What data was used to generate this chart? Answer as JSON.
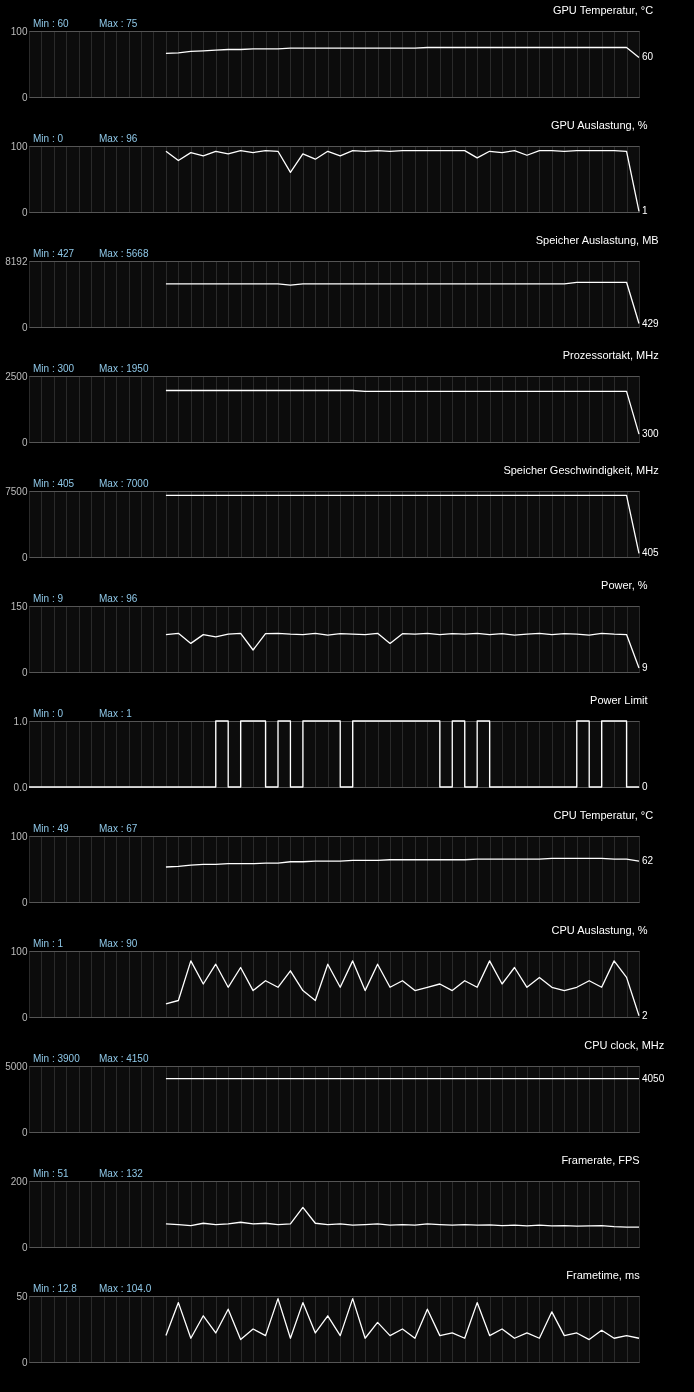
{
  "chart_data": [
    {
      "type": "line",
      "title": "GPU Temperatur, °C",
      "categories": [
        null,
        null,
        null,
        null,
        null,
        null,
        null,
        null,
        null,
        null,
        null,
        null,
        null,
        null,
        null,
        null,
        null,
        null,
        null,
        null,
        null,
        null,
        null,
        null,
        null,
        null,
        null,
        null,
        null,
        null,
        null,
        null,
        null,
        null,
        null,
        null,
        null,
        null,
        null,
        null,
        null,
        null,
        null,
        null,
        null,
        null,
        null,
        null,
        null,
        null
      ],
      "series": [
        {
          "color": "#ffffff",
          "values": [
            null,
            null,
            null,
            null,
            null,
            null,
            null,
            null,
            null,
            null,
            null,
            66,
            67,
            69,
            70,
            71,
            72,
            72,
            73,
            73,
            73,
            74,
            74,
            74,
            74,
            74,
            74,
            74,
            74,
            74,
            74,
            74,
            75,
            75,
            75,
            75,
            75,
            75,
            75,
            75,
            75,
            75,
            75,
            75,
            75,
            75,
            75,
            75,
            75,
            60
          ]
        }
      ],
      "ylim": [
        0,
        100
      ],
      "yticks": [
        0,
        100
      ],
      "grid": true,
      "tick_labels": "y",
      "annotations": [
        "Min : 60",
        "Max : 75",
        "60"
      ]
    },
    {
      "type": "line",
      "title": "GPU Auslastung, %",
      "categories": [
        null,
        null,
        null,
        null,
        null,
        null,
        null,
        null,
        null,
        null,
        null,
        null,
        null,
        null,
        null,
        null,
        null,
        null,
        null,
        null,
        null,
        null,
        null,
        null,
        null,
        null,
        null,
        null,
        null,
        null,
        null,
        null,
        null,
        null,
        null,
        null,
        null,
        null,
        null,
        null,
        null,
        null,
        null,
        null,
        null,
        null,
        null,
        null,
        null,
        null
      ],
      "series": [
        {
          "color": "#ffffff",
          "values": [
            null,
            null,
            null,
            null,
            null,
            null,
            null,
            null,
            null,
            null,
            null,
            92,
            78,
            90,
            85,
            92,
            88,
            93,
            90,
            93,
            92,
            60,
            88,
            80,
            92,
            85,
            93,
            92,
            93,
            92,
            93,
            93,
            93,
            93,
            93,
            93,
            82,
            92,
            90,
            93,
            86,
            93,
            93,
            92,
            93,
            93,
            93,
            93,
            92,
            1
          ]
        }
      ],
      "ylim": [
        0,
        100
      ],
      "yticks": [
        0,
        100
      ],
      "grid": true,
      "tick_labels": "y",
      "annotations": [
        "Min : 0",
        "Max : 96",
        "1"
      ]
    },
    {
      "type": "line",
      "title": "Speicher Auslastung, MB",
      "categories": [
        null,
        null,
        null,
        null,
        null,
        null,
        null,
        null,
        null,
        null,
        null,
        null,
        null,
        null,
        null,
        null,
        null,
        null,
        null,
        null,
        null,
        null,
        null,
        null,
        null,
        null,
        null,
        null,
        null,
        null,
        null,
        null,
        null,
        null,
        null,
        null,
        null,
        null,
        null,
        null,
        null,
        null,
        null,
        null,
        null,
        null,
        null,
        null,
        null,
        null
      ],
      "series": [
        {
          "color": "#ffffff",
          "values": [
            null,
            null,
            null,
            null,
            null,
            null,
            null,
            null,
            null,
            null,
            null,
            5350,
            5350,
            5350,
            5350,
            5350,
            5350,
            5350,
            5350,
            5350,
            5350,
            5200,
            5350,
            5350,
            5350,
            5350,
            5350,
            5350,
            5350,
            5350,
            5350,
            5350,
            5350,
            5350,
            5350,
            5350,
            5350,
            5350,
            5350,
            5350,
            5350,
            5350,
            5350,
            5350,
            5550,
            5550,
            5550,
            5550,
            5550,
            429
          ]
        }
      ],
      "ylim": [
        0,
        8192
      ],
      "yticks": [
        0,
        8192
      ],
      "grid": true,
      "tick_labels": "y",
      "annotations": [
        "Min : 427",
        "Max : 5668",
        "429"
      ]
    },
    {
      "type": "line",
      "title": "Prozessortakt, MHz",
      "categories": [
        null,
        null,
        null,
        null,
        null,
        null,
        null,
        null,
        null,
        null,
        null,
        null,
        null,
        null,
        null,
        null,
        null,
        null,
        null,
        null,
        null,
        null,
        null,
        null,
        null,
        null,
        null,
        null,
        null,
        null,
        null,
        null,
        null,
        null,
        null,
        null,
        null,
        null,
        null,
        null,
        null,
        null,
        null,
        null,
        null,
        null,
        null,
        null,
        null,
        null
      ],
      "series": [
        {
          "color": "#ffffff",
          "values": [
            null,
            null,
            null,
            null,
            null,
            null,
            null,
            null,
            null,
            null,
            null,
            1950,
            1950,
            1950,
            1950,
            1950,
            1950,
            1950,
            1950,
            1950,
            1950,
            1950,
            1950,
            1950,
            1950,
            1950,
            1950,
            1920,
            1920,
            1920,
            1920,
            1920,
            1920,
            1920,
            1920,
            1920,
            1920,
            1920,
            1920,
            1920,
            1920,
            1920,
            1920,
            1920,
            1920,
            1920,
            1920,
            1920,
            1920,
            300
          ]
        }
      ],
      "ylim": [
        0,
        2500
      ],
      "yticks": [
        0,
        2500
      ],
      "grid": true,
      "tick_labels": "y",
      "annotations": [
        "Min : 300",
        "Max : 1950",
        "300"
      ]
    },
    {
      "type": "line",
      "title": "Speicher Geschwindigkeit, MHz",
      "categories": [
        null,
        null,
        null,
        null,
        null,
        null,
        null,
        null,
        null,
        null,
        null,
        null,
        null,
        null,
        null,
        null,
        null,
        null,
        null,
        null,
        null,
        null,
        null,
        null,
        null,
        null,
        null,
        null,
        null,
        null,
        null,
        null,
        null,
        null,
        null,
        null,
        null,
        null,
        null,
        null,
        null,
        null,
        null,
        null,
        null,
        null,
        null,
        null,
        null,
        null
      ],
      "series": [
        {
          "color": "#ffffff",
          "values": [
            null,
            null,
            null,
            null,
            null,
            null,
            null,
            null,
            null,
            null,
            null,
            7000,
            7000,
            7000,
            7000,
            7000,
            7000,
            7000,
            7000,
            7000,
            7000,
            7000,
            7000,
            7000,
            7000,
            7000,
            7000,
            7000,
            7000,
            7000,
            7000,
            7000,
            7000,
            7000,
            7000,
            7000,
            7000,
            7000,
            7000,
            7000,
            7000,
            7000,
            7000,
            7000,
            7000,
            7000,
            7000,
            7000,
            7000,
            405
          ]
        }
      ],
      "ylim": [
        0,
        7500
      ],
      "yticks": [
        0,
        7500
      ],
      "grid": true,
      "tick_labels": "y",
      "annotations": [
        "Min : 405",
        "Max : 7000",
        "405"
      ]
    },
    {
      "type": "line",
      "title": "Power, %",
      "categories": [
        null,
        null,
        null,
        null,
        null,
        null,
        null,
        null,
        null,
        null,
        null,
        null,
        null,
        null,
        null,
        null,
        null,
        null,
        null,
        null,
        null,
        null,
        null,
        null,
        null,
        null,
        null,
        null,
        null,
        null,
        null,
        null,
        null,
        null,
        null,
        null,
        null,
        null,
        null,
        null,
        null,
        null,
        null,
        null,
        null,
        null,
        null,
        null,
        null,
        null
      ],
      "series": [
        {
          "color": "#ffffff",
          "values": [
            null,
            null,
            null,
            null,
            null,
            null,
            null,
            null,
            null,
            null,
            null,
            85,
            88,
            65,
            85,
            80,
            86,
            88,
            50,
            87,
            88,
            86,
            85,
            88,
            84,
            87,
            86,
            85,
            88,
            65,
            87,
            86,
            88,
            85,
            87,
            86,
            88,
            85,
            87,
            84,
            86,
            88,
            85,
            87,
            86,
            84,
            88,
            86,
            85,
            9
          ]
        }
      ],
      "ylim": [
        0,
        150
      ],
      "yticks": [
        0,
        150
      ],
      "grid": true,
      "tick_labels": "y",
      "annotations": [
        "Min : 9",
        "Max : 96",
        "9"
      ]
    },
    {
      "type": "step",
      "title": "Power Limit",
      "categories": [
        null,
        null,
        null,
        null,
        null,
        null,
        null,
        null,
        null,
        null,
        null,
        null,
        null,
        null,
        null,
        null,
        null,
        null,
        null,
        null,
        null,
        null,
        null,
        null,
        null,
        null,
        null,
        null,
        null,
        null,
        null,
        null,
        null,
        null,
        null,
        null,
        null,
        null,
        null,
        null,
        null,
        null,
        null,
        null,
        null,
        null,
        null,
        null,
        null,
        null
      ],
      "series": [
        {
          "color": "#ffffff",
          "values": [
            0,
            0,
            0,
            0,
            0,
            0,
            0,
            0,
            0,
            0,
            0,
            0,
            0,
            0,
            0,
            1,
            0,
            1,
            1,
            0,
            1,
            0,
            1,
            1,
            1,
            0,
            1,
            1,
            1,
            1,
            1,
            1,
            1,
            0,
            1,
            0,
            1,
            0,
            0,
            0,
            0,
            0,
            0,
            0,
            1,
            0,
            1,
            1,
            0,
            0
          ]
        }
      ],
      "ylim": [
        0,
        1
      ],
      "yticks": [
        {
          "value": 0,
          "label": "0.0"
        },
        {
          "value": 1,
          "label": "1.0"
        }
      ],
      "grid": true,
      "tick_labels": "y",
      "annotations": [
        "Min : 0",
        "Max : 1",
        "0"
      ]
    },
    {
      "type": "line",
      "title": "CPU Temperatur, °C",
      "categories": [
        null,
        null,
        null,
        null,
        null,
        null,
        null,
        null,
        null,
        null,
        null,
        null,
        null,
        null,
        null,
        null,
        null,
        null,
        null,
        null,
        null,
        null,
        null,
        null,
        null,
        null,
        null,
        null,
        null,
        null,
        null,
        null,
        null,
        null,
        null,
        null,
        null,
        null,
        null,
        null,
        null,
        null,
        null,
        null,
        null,
        null,
        null,
        null,
        null,
        null
      ],
      "series": [
        {
          "color": "#ffffff",
          "values": [
            null,
            null,
            null,
            null,
            null,
            null,
            null,
            null,
            null,
            null,
            null,
            53,
            54,
            56,
            57,
            57,
            58,
            58,
            58,
            59,
            59,
            61,
            61,
            62,
            62,
            62,
            63,
            63,
            63,
            64,
            64,
            64,
            64,
            64,
            64,
            64,
            65,
            65,
            65,
            65,
            65,
            65,
            66,
            66,
            66,
            66,
            66,
            65,
            65,
            62
          ]
        }
      ],
      "ylim": [
        0,
        100
      ],
      "yticks": [
        0,
        100
      ],
      "grid": true,
      "tick_labels": "y",
      "annotations": [
        "Min : 49",
        "Max : 67",
        "62"
      ]
    },
    {
      "type": "line",
      "title": "CPU Auslastung, %",
      "categories": [
        null,
        null,
        null,
        null,
        null,
        null,
        null,
        null,
        null,
        null,
        null,
        null,
        null,
        null,
        null,
        null,
        null,
        null,
        null,
        null,
        null,
        null,
        null,
        null,
        null,
        null,
        null,
        null,
        null,
        null,
        null,
        null,
        null,
        null,
        null,
        null,
        null,
        null,
        null,
        null,
        null,
        null,
        null,
        null,
        null,
        null,
        null,
        null,
        null,
        null
      ],
      "series": [
        {
          "color": "#ffffff",
          "values": [
            null,
            null,
            null,
            null,
            null,
            null,
            null,
            null,
            null,
            null,
            null,
            20,
            25,
            85,
            50,
            80,
            45,
            75,
            40,
            55,
            45,
            70,
            40,
            25,
            80,
            45,
            85,
            40,
            80,
            45,
            55,
            40,
            45,
            50,
            40,
            55,
            45,
            85,
            50,
            75,
            45,
            60,
            45,
            40,
            45,
            55,
            45,
            85,
            60,
            2
          ]
        }
      ],
      "ylim": [
        0,
        100
      ],
      "yticks": [
        0,
        100
      ],
      "grid": true,
      "tick_labels": "y",
      "annotations": [
        "Min : 1",
        "Max : 90",
        "2"
      ]
    },
    {
      "type": "line",
      "title": "CPU clock, MHz",
      "categories": [
        null,
        null,
        null,
        null,
        null,
        null,
        null,
        null,
        null,
        null,
        null,
        null,
        null,
        null,
        null,
        null,
        null,
        null,
        null,
        null,
        null,
        null,
        null,
        null,
        null,
        null,
        null,
        null,
        null,
        null,
        null,
        null,
        null,
        null,
        null,
        null,
        null,
        null,
        null,
        null,
        null,
        null,
        null,
        null,
        null,
        null,
        null,
        null,
        null,
        null
      ],
      "series": [
        {
          "color": "#ffffff",
          "values": [
            null,
            null,
            null,
            null,
            null,
            null,
            null,
            null,
            null,
            null,
            null,
            4050,
            4050,
            4050,
            4050,
            4050,
            4050,
            4050,
            4050,
            4050,
            4050,
            4050,
            4050,
            4050,
            4050,
            4050,
            4050,
            4050,
            4050,
            4050,
            4050,
            4050,
            4050,
            4050,
            4050,
            4050,
            4050,
            4050,
            4050,
            4050,
            4050,
            4050,
            4050,
            4050,
            4050,
            4050,
            4050,
            4050,
            4050,
            4050
          ]
        }
      ],
      "ylim": [
        0,
        5000
      ],
      "yticks": [
        0,
        5000
      ],
      "grid": true,
      "tick_labels": "y",
      "annotations": [
        "Min : 3900",
        "Max : 4150",
        "4050"
      ]
    },
    {
      "type": "line",
      "title": "Framerate, FPS",
      "categories": [
        null,
        null,
        null,
        null,
        null,
        null,
        null,
        null,
        null,
        null,
        null,
        null,
        null,
        null,
        null,
        null,
        null,
        null,
        null,
        null,
        null,
        null,
        null,
        null,
        null,
        null,
        null,
        null,
        null,
        null,
        null,
        null,
        null,
        null,
        null,
        null,
        null,
        null,
        null,
        null,
        null,
        null,
        null,
        null,
        null,
        null,
        null,
        null,
        null,
        null
      ],
      "series": [
        {
          "color": "#ffffff",
          "values": [
            null,
            null,
            null,
            null,
            null,
            null,
            null,
            null,
            null,
            null,
            null,
            70,
            68,
            65,
            72,
            68,
            70,
            75,
            70,
            72,
            68,
            70,
            120,
            72,
            68,
            70,
            66,
            68,
            70,
            66,
            68,
            66,
            70,
            68,
            66,
            68,
            66,
            67,
            65,
            66,
            64,
            66,
            64,
            65,
            63,
            64,
            65,
            62,
            60,
            60
          ]
        }
      ],
      "ylim": [
        0,
        200
      ],
      "yticks": [
        0,
        200
      ],
      "grid": true,
      "tick_labels": "y",
      "annotations": [
        "Min : 51",
        "Max : 132"
      ]
    },
    {
      "type": "line",
      "title": "Frametime, ms",
      "categories": [
        null,
        null,
        null,
        null,
        null,
        null,
        null,
        null,
        null,
        null,
        null,
        null,
        null,
        null,
        null,
        null,
        null,
        null,
        null,
        null,
        null,
        null,
        null,
        null,
        null,
        null,
        null,
        null,
        null,
        null,
        null,
        null,
        null,
        null,
        null,
        null,
        null,
        null,
        null,
        null,
        null,
        null,
        null,
        null,
        null,
        null,
        null,
        null,
        null,
        null
      ],
      "series": [
        {
          "color": "#ffffff",
          "values": [
            null,
            null,
            null,
            null,
            null,
            null,
            null,
            null,
            null,
            null,
            null,
            20,
            45,
            18,
            35,
            22,
            40,
            17,
            25,
            20,
            48,
            18,
            45,
            22,
            35,
            20,
            48,
            18,
            30,
            20,
            25,
            18,
            40,
            20,
            22,
            18,
            45,
            20,
            25,
            18,
            22,
            18,
            38,
            20,
            22,
            17,
            24,
            18,
            20,
            18
          ]
        }
      ],
      "ylim": [
        0,
        50
      ],
      "yticks": [
        0,
        50
      ],
      "grid": true,
      "tick_labels": "y",
      "annotations": [
        "Min : 12.8",
        "Max : 104.0"
      ]
    }
  ]
}
